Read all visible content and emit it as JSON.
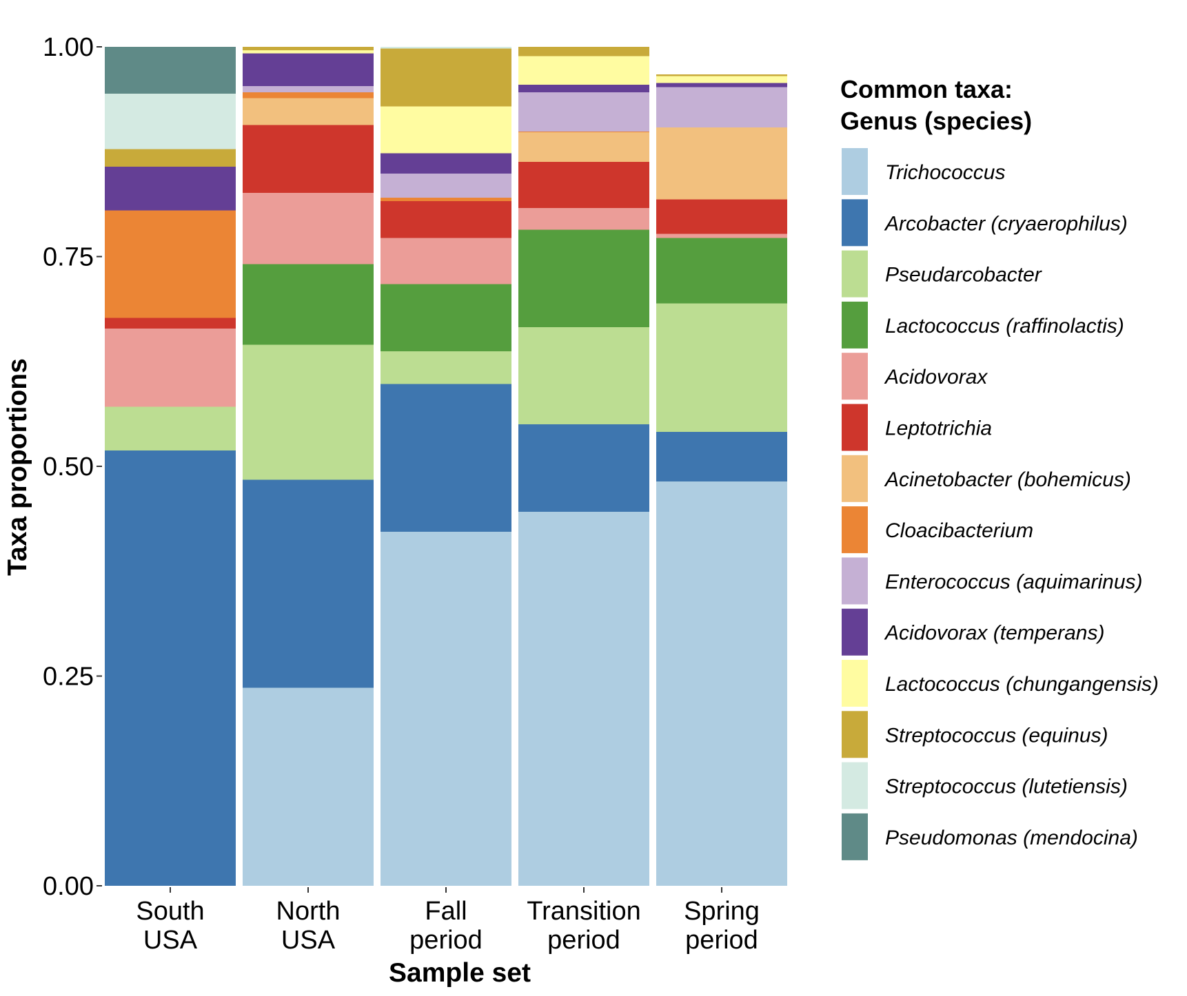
{
  "chart_data": {
    "type": "bar",
    "stacked": true,
    "xlabel": "Sample set",
    "ylabel": "Taxa proportions",
    "ylim": [
      0,
      1
    ],
    "yticks": [
      "0.00",
      "0.25",
      "0.50",
      "0.75",
      "1.00"
    ],
    "ytick_values": [
      0,
      0.25,
      0.5,
      0.75,
      1.0
    ],
    "grid": false,
    "legend_position": "right",
    "legend_title_lines": [
      "Common taxa:",
      "Genus (species)"
    ],
    "categories": [
      [
        "South",
        "USA"
      ],
      [
        "North",
        "USA"
      ],
      [
        "Fall",
        "period"
      ],
      [
        "Transition",
        "period"
      ],
      [
        "Spring",
        "period"
      ]
    ],
    "series": [
      {
        "name": "Trichococcus",
        "color": "#AECDE1",
        "values": [
          0.0,
          0.236,
          0.422,
          0.446,
          0.482
        ]
      },
      {
        "name": "Arcobacter (cryaerophilus)",
        "color": "#3E76AF",
        "values": [
          0.519,
          0.248,
          0.176,
          0.104,
          0.059
        ]
      },
      {
        "name": "Pseudarcobacter",
        "color": "#BCDD92",
        "values": [
          0.052,
          0.161,
          0.039,
          0.116,
          0.153
        ]
      },
      {
        "name": "Lactococcus (raffinolactis)",
        "color": "#559E3E",
        "values": [
          0.0,
          0.096,
          0.08,
          0.116,
          0.078
        ]
      },
      {
        "name": "Acidovorax",
        "color": "#EB9D98",
        "values": [
          0.093,
          0.085,
          0.055,
          0.026,
          0.005
        ]
      },
      {
        "name": "Leptotrichia",
        "color": "#CE362C",
        "values": [
          0.013,
          0.081,
          0.044,
          0.055,
          0.041
        ]
      },
      {
        "name": "Acinetobacter (bohemicus)",
        "color": "#F2C07E",
        "values": [
          0.0,
          0.032,
          0.0,
          0.035,
          0.086
        ]
      },
      {
        "name": "Cloacibacterium",
        "color": "#EB8535",
        "values": [
          0.128,
          0.007,
          0.004,
          0.001,
          0.0
        ]
      },
      {
        "name": "Enterococcus (aquimarinus)",
        "color": "#C5B0D4",
        "values": [
          0.0,
          0.007,
          0.029,
          0.047,
          0.048
        ]
      },
      {
        "name": "Acidovorax (temperans)",
        "color": "#643F95",
        "values": [
          0.052,
          0.039,
          0.024,
          0.009,
          0.005
        ]
      },
      {
        "name": "Lactococcus (chungangensis)",
        "color": "#FFFCA1",
        "values": [
          0.0,
          0.004,
          0.056,
          0.034,
          0.008
        ]
      },
      {
        "name": "Streptococcus (equinus)",
        "color": "#C8AA3A",
        "values": [
          0.021,
          0.004,
          0.069,
          0.011,
          0.002
        ]
      },
      {
        "name": "Streptococcus (lutetiensis)",
        "color": "#D4EAE2",
        "values": [
          0.066,
          0.0,
          0.002,
          0.0,
          0.0
        ]
      },
      {
        "name": "Pseudomonas (mendocina)",
        "color": "#5F8A87",
        "values": [
          0.056,
          0.0,
          0.0,
          0.0,
          0.0
        ]
      }
    ]
  }
}
